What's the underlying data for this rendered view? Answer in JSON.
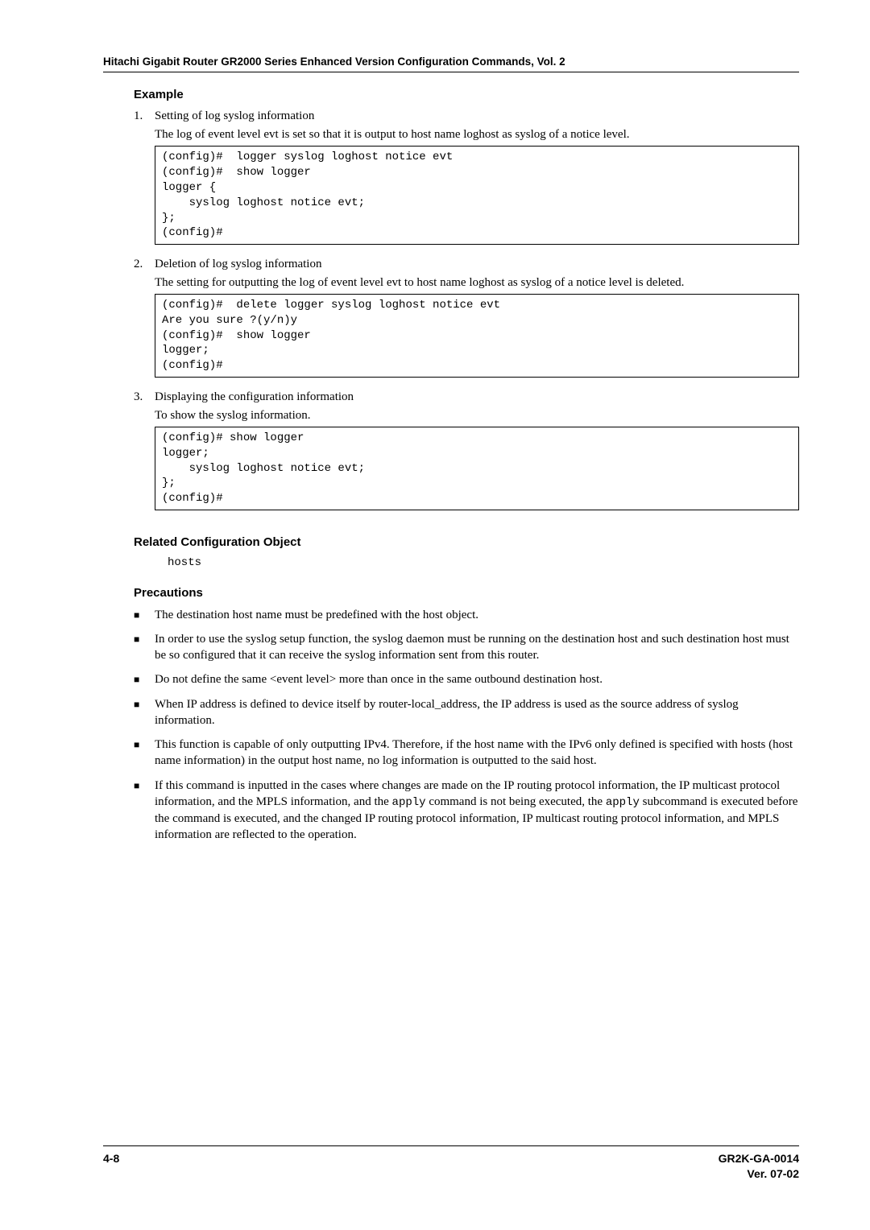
{
  "header": "Hitachi Gigabit Router GR2000 Series Enhanced Version Configuration Commands, Vol. 2",
  "example": {
    "title": "Example",
    "items": [
      {
        "num": "1.",
        "lead": "Setting of log syslog information",
        "sub": "The log of event level evt is set so that it is output to host name loghost as syslog of a notice level.",
        "code": "(config)#  logger syslog loghost notice evt\n(config)#  show logger\nlogger {\n    syslog loghost notice evt;\n};\n(config)#"
      },
      {
        "num": "2.",
        "lead": "Deletion of log syslog information",
        "sub": "The setting for outputting the log of event level evt to host name loghost as syslog of a notice level is deleted.",
        "code": "(config)#  delete logger syslog loghost notice evt\nAre you sure ?(y/n)y\n(config)#  show logger\nlogger;\n(config)#"
      },
      {
        "num": "3.",
        "lead": "Displaying the configuration information",
        "sub": "To show the syslog information.",
        "code": "(config)# show logger\nlogger;\n    syslog loghost notice evt;\n};\n(config)#"
      }
    ]
  },
  "related": {
    "title": "Related Configuration Object",
    "value": "hosts"
  },
  "precautions": {
    "title": "Precautions",
    "bullets": [
      "The destination host name must be predefined with the host object.",
      "In order to use the syslog setup function, the syslog daemon must be running on the destination host and such destination host must be so configured that it can receive the syslog information sent from this router.",
      "Do not define the same <event level> more than once in the same outbound destination host.",
      "When IP address is defined to device itself by router-local_address, the IP address is used as the source address of syslog information.",
      "This function is capable of only outputting IPv4. Therefore, if the host name with the IPv6 only defined is specified with hosts (host name information) in the output host name, no log information is outputted to the said host."
    ],
    "last_bullet": {
      "pre1": "If this command is inputted in the cases where changes are made on the IP routing protocol information, the IP multicast protocol information, and the MPLS information, and the ",
      "apply1": "apply",
      "mid1": " command is not being executed, the ",
      "apply2": "apply",
      "post": " subcommand is executed before the command is executed, and the changed IP routing protocol information, IP multicast routing protocol information, and MPLS information are reflected to the operation."
    }
  },
  "footer": {
    "left": "4-8",
    "right1": "GR2K-GA-0014",
    "right2": "Ver. 07-02"
  }
}
